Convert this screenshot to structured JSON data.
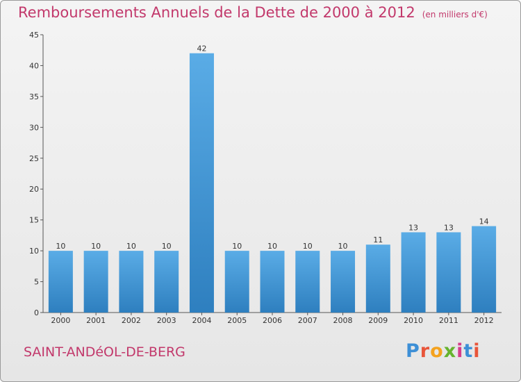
{
  "header": {
    "title": "Remboursements Annuels de la Dette de 2000 à 2012",
    "unit": "(en milliers d'€)"
  },
  "footer": {
    "commune": "SAINT-ANDéOL-DE-BERG",
    "logo": "Proxiti",
    "logo_colors": [
      "#3d8fd6",
      "#e8553a",
      "#f4a21e",
      "#66b32e",
      "#d63c8a",
      "#3d8fd6",
      "#e8553a"
    ]
  },
  "colors": {
    "title": "#c2386b",
    "bar_top": "#5aace6",
    "bar_bottom": "#2e7fbf"
  },
  "chart_data": {
    "type": "bar",
    "categories": [
      "2000",
      "2001",
      "2002",
      "2003",
      "2004",
      "2005",
      "2006",
      "2007",
      "2008",
      "2009",
      "2010",
      "2011",
      "2012"
    ],
    "values": [
      10,
      10,
      10,
      10,
      42,
      10,
      10,
      10,
      10,
      11,
      13,
      13,
      14
    ],
    "ylim": [
      0,
      45
    ],
    "yticks": [
      0,
      5,
      10,
      15,
      20,
      25,
      30,
      35,
      40,
      45
    ],
    "grid": false
  }
}
